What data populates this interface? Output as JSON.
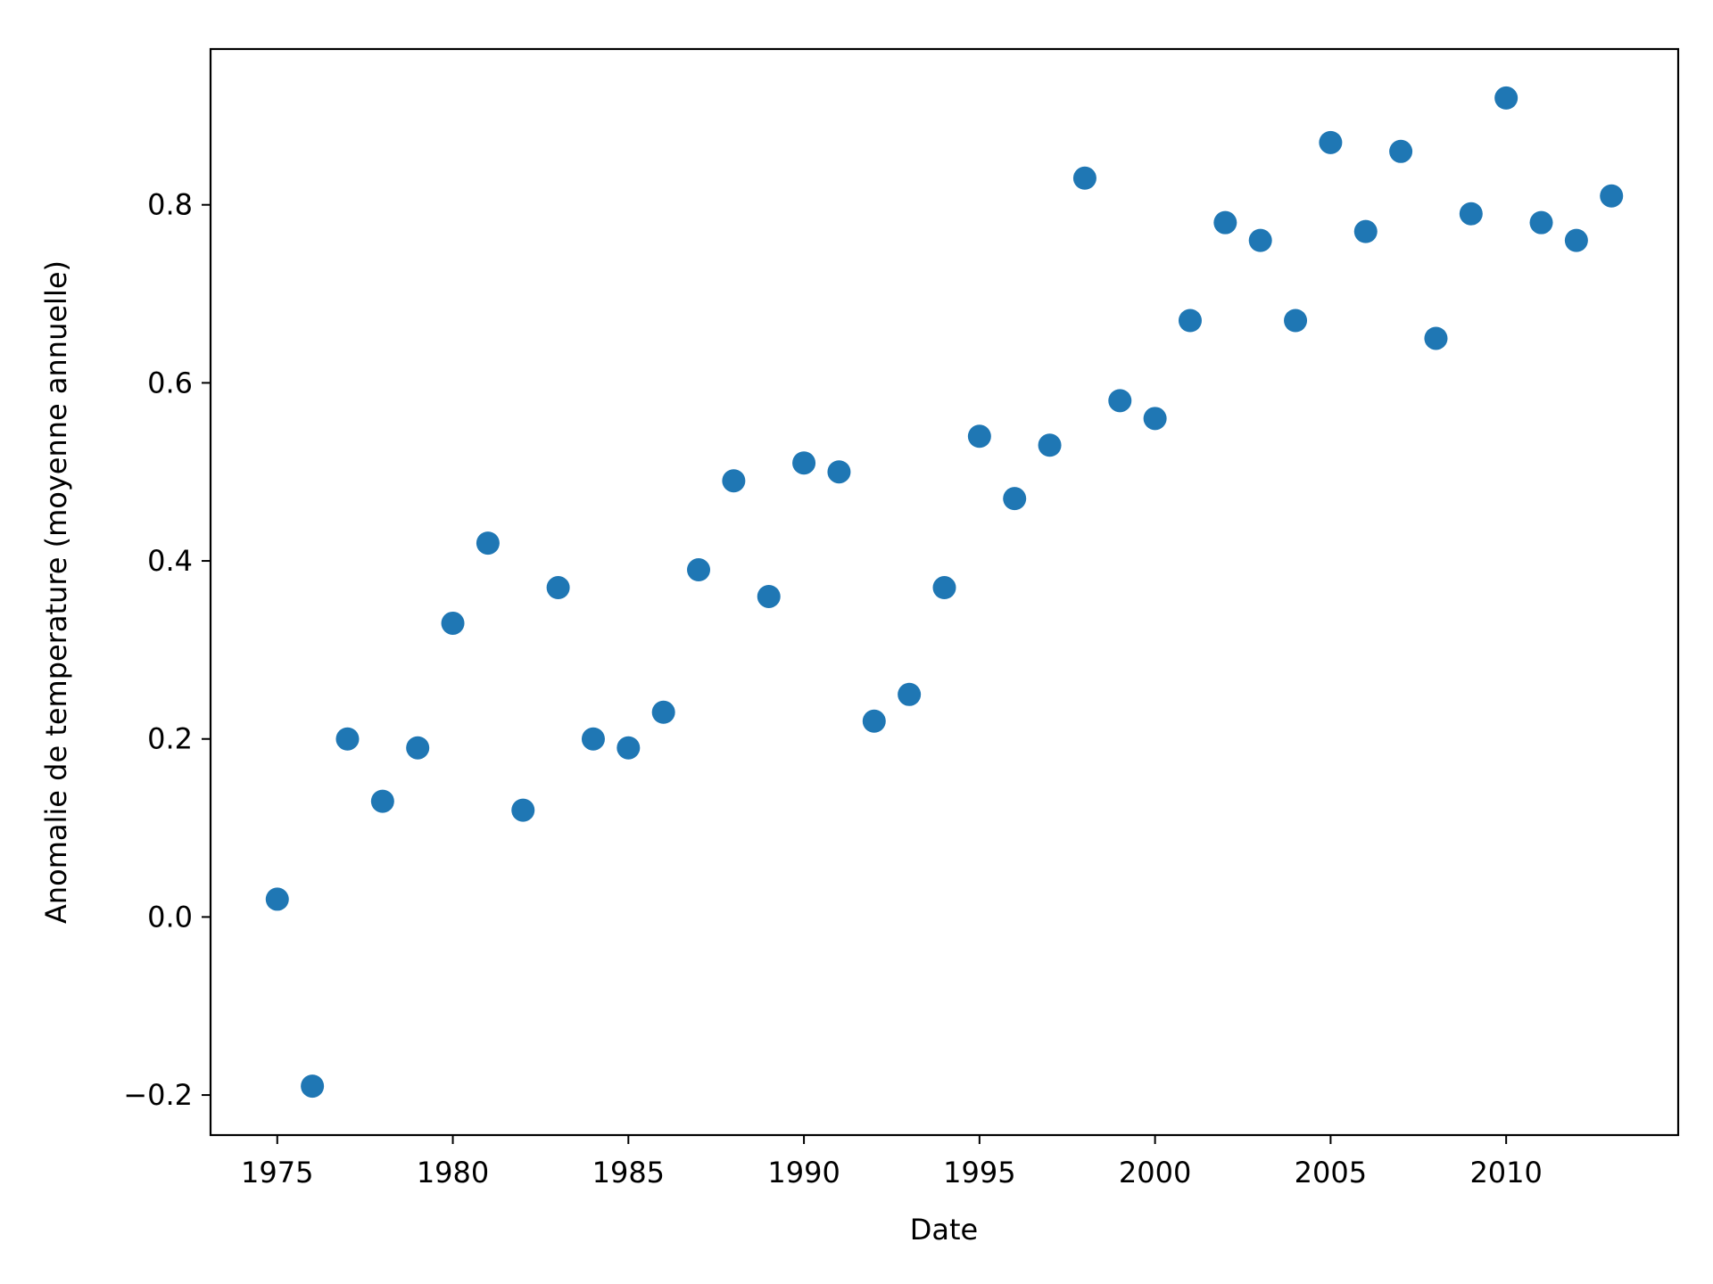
{
  "chart_data": {
    "type": "scatter",
    "title": "",
    "xlabel": "Date",
    "ylabel": "Anomalie de temperature (moyenne annuelle)",
    "xlim": [
      1973.1,
      2014.9
    ],
    "ylim": [
      -0.245,
      0.975
    ],
    "x_ticks": [
      1975,
      1980,
      1985,
      1990,
      1995,
      2000,
      2005,
      2010
    ],
    "x_tick_labels": [
      "1975",
      "1980",
      "1985",
      "1990",
      "1995",
      "2000",
      "2005",
      "2010"
    ],
    "y_ticks": [
      -0.2,
      0.0,
      0.2,
      0.4,
      0.6,
      0.8
    ],
    "y_tick_labels": [
      "−0.2",
      "0.0",
      "0.2",
      "0.4",
      "0.6",
      "0.8"
    ],
    "grid": false,
    "legend": "none",
    "marker_color": "#1f77b4",
    "series": [
      {
        "x": [
          1975,
          1976,
          1977,
          1978,
          1979,
          1980,
          1981,
          1982,
          1983,
          1984,
          1985,
          1986,
          1987,
          1988,
          1989,
          1990,
          1991,
          1992,
          1993,
          1994,
          1995,
          1996,
          1997,
          1998,
          1999,
          2000,
          2001,
          2002,
          2003,
          2004,
          2005,
          2006,
          2007,
          2008,
          2009,
          2010,
          2011,
          2012,
          2013
        ],
        "y": [
          0.02,
          -0.19,
          0.2,
          0.13,
          0.19,
          0.33,
          0.42,
          0.12,
          0.37,
          0.2,
          0.19,
          0.23,
          0.39,
          0.49,
          0.36,
          0.51,
          0.5,
          0.22,
          0.25,
          0.37,
          0.54,
          0.47,
          0.53,
          0.83,
          0.58,
          0.56,
          0.67,
          0.78,
          0.76,
          0.67,
          0.87,
          0.77,
          0.86,
          0.65,
          0.79,
          0.92,
          0.78,
          0.76,
          0.81
        ]
      }
    ]
  }
}
